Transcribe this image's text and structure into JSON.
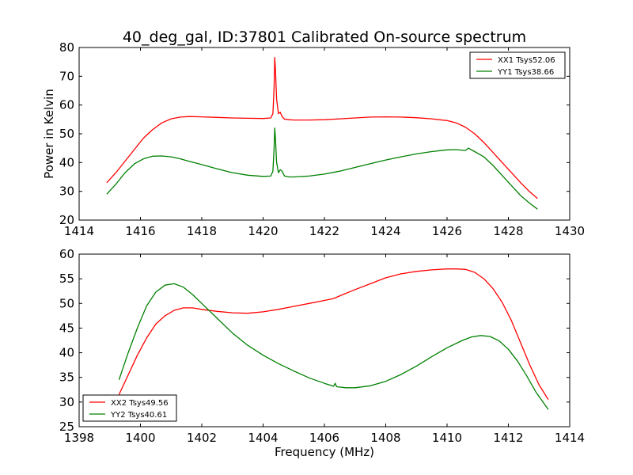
{
  "figure": {
    "title": "40_deg_gal, ID:37801 Calibrated On-source spectrum"
  },
  "chart_data": [
    {
      "type": "line",
      "title": "40_deg_gal, ID:37801 Calibrated On-source spectrum",
      "xlabel": "",
      "ylabel": "Power in Kelvin",
      "xlim": [
        1414,
        1430
      ],
      "ylim": [
        20,
        80
      ],
      "xticks": [
        1414,
        1416,
        1418,
        1420,
        1422,
        1424,
        1426,
        1428,
        1430
      ],
      "yticks": [
        20,
        30,
        40,
        50,
        60,
        70,
        80
      ],
      "grid": false,
      "legend": "top-right",
      "series": [
        {
          "name": "XX1 Tsys52.06",
          "color": "#ff0000",
          "x": [
            1414.9,
            1415.2,
            1415.5,
            1415.8,
            1416.1,
            1416.4,
            1416.7,
            1417.0,
            1417.3,
            1417.6,
            1418.0,
            1418.5,
            1419.0,
            1419.5,
            1420.0,
            1420.25,
            1420.32,
            1420.36,
            1420.38,
            1420.4,
            1420.44,
            1420.5,
            1420.56,
            1420.62,
            1420.7,
            1420.85,
            1421.0,
            1421.5,
            1422.0,
            1422.5,
            1423.0,
            1423.5,
            1424.0,
            1424.5,
            1425.0,
            1425.5,
            1426.0,
            1426.3,
            1426.6,
            1426.9,
            1427.2,
            1427.5,
            1427.8,
            1428.1,
            1428.4,
            1428.7,
            1428.95
          ],
          "y": [
            33.0,
            36.5,
            40.5,
            44.5,
            48.5,
            51.5,
            53.8,
            55.2,
            55.8,
            56.0,
            55.9,
            55.7,
            55.5,
            55.4,
            55.3,
            55.5,
            57.0,
            66.0,
            76.5,
            73.0,
            62.0,
            57.0,
            57.5,
            56.0,
            55.1,
            54.9,
            54.8,
            54.8,
            54.9,
            55.2,
            55.5,
            55.8,
            55.9,
            55.8,
            55.6,
            55.2,
            54.6,
            53.8,
            52.3,
            50.0,
            47.0,
            43.5,
            40.0,
            36.5,
            33.0,
            29.8,
            27.5
          ]
        },
        {
          "name": "YY1 Tsys38.66",
          "color": "#008000",
          "x": [
            1414.9,
            1415.2,
            1415.5,
            1415.8,
            1416.1,
            1416.4,
            1416.7,
            1417.0,
            1417.3,
            1417.6,
            1418.0,
            1418.5,
            1419.0,
            1419.5,
            1420.0,
            1420.25,
            1420.32,
            1420.36,
            1420.38,
            1420.4,
            1420.44,
            1420.5,
            1420.56,
            1420.62,
            1420.7,
            1420.85,
            1421.0,
            1421.5,
            1422.0,
            1422.5,
            1423.0,
            1423.5,
            1424.0,
            1424.5,
            1425.0,
            1425.5,
            1426.0,
            1426.3,
            1426.6,
            1426.7,
            1426.9,
            1427.2,
            1427.5,
            1427.8,
            1428.1,
            1428.4,
            1428.7,
            1428.95
          ],
          "y": [
            29.0,
            32.5,
            36.5,
            39.5,
            41.3,
            42.2,
            42.3,
            42.0,
            41.3,
            40.4,
            39.3,
            37.8,
            36.5,
            35.6,
            35.2,
            35.3,
            37.0,
            45.0,
            52.0,
            49.0,
            40.0,
            36.5,
            37.5,
            37.0,
            35.3,
            35.0,
            35.0,
            35.3,
            36.0,
            37.0,
            38.3,
            39.6,
            40.9,
            42.0,
            43.0,
            43.8,
            44.4,
            44.5,
            44.2,
            45.0,
            43.8,
            42.0,
            39.0,
            35.5,
            32.0,
            28.5,
            25.8,
            23.8
          ]
        }
      ]
    },
    {
      "type": "line",
      "title": "",
      "xlabel": "Frequency (MHz)",
      "ylabel": "",
      "xlim": [
        1398,
        1414
      ],
      "ylim": [
        25,
        60
      ],
      "xticks": [
        1398,
        1400,
        1402,
        1404,
        1406,
        1408,
        1410,
        1412,
        1414
      ],
      "yticks": [
        25,
        30,
        35,
        40,
        45,
        50,
        55,
        60
      ],
      "grid": false,
      "legend": "bottom-left",
      "series": [
        {
          "name": "XX2 Tsys49.56",
          "color": "#ff0000",
          "x": [
            1399.3,
            1399.6,
            1399.9,
            1400.2,
            1400.5,
            1400.8,
            1401.1,
            1401.4,
            1401.7,
            1402.0,
            1402.5,
            1403.0,
            1403.5,
            1404.0,
            1404.5,
            1405.0,
            1405.5,
            1406.0,
            1406.3,
            1406.6,
            1407.0,
            1407.5,
            1408.0,
            1408.5,
            1409.0,
            1409.5,
            1410.0,
            1410.3,
            1410.6,
            1410.9,
            1411.2,
            1411.5,
            1411.8,
            1412.1,
            1412.4,
            1412.7,
            1413.0,
            1413.3
          ],
          "y": [
            31.5,
            35.5,
            39.5,
            43.0,
            45.8,
            47.5,
            48.6,
            49.1,
            49.1,
            48.8,
            48.4,
            48.1,
            48.0,
            48.3,
            48.8,
            49.4,
            50.0,
            50.6,
            51.0,
            51.8,
            52.8,
            54.0,
            55.2,
            56.0,
            56.5,
            56.8,
            57.0,
            57.0,
            56.9,
            56.3,
            55.0,
            53.0,
            50.2,
            46.5,
            42.0,
            37.5,
            33.5,
            30.5
          ]
        },
        {
          "name": "YY2 Tsys40.61",
          "color": "#008000",
          "x": [
            1399.3,
            1399.6,
            1399.9,
            1400.2,
            1400.5,
            1400.8,
            1401.1,
            1401.4,
            1401.7,
            1402.0,
            1402.5,
            1403.0,
            1403.5,
            1404.0,
            1404.5,
            1405.0,
            1405.5,
            1406.0,
            1406.3,
            1406.35,
            1406.4,
            1406.7,
            1407.0,
            1407.5,
            1408.0,
            1408.5,
            1409.0,
            1409.5,
            1410.0,
            1410.5,
            1410.8,
            1411.1,
            1411.4,
            1411.7,
            1412.0,
            1412.3,
            1412.6,
            1412.9,
            1413.3
          ],
          "y": [
            34.5,
            40.0,
            45.0,
            49.5,
            52.3,
            53.7,
            54.0,
            53.3,
            51.8,
            50.0,
            47.0,
            44.0,
            41.5,
            39.5,
            37.8,
            36.3,
            34.9,
            33.8,
            33.2,
            33.8,
            33.1,
            32.9,
            32.9,
            33.3,
            34.2,
            35.6,
            37.3,
            39.2,
            41.0,
            42.5,
            43.2,
            43.5,
            43.3,
            42.4,
            40.7,
            38.3,
            35.3,
            32.0,
            28.5
          ]
        }
      ]
    }
  ]
}
